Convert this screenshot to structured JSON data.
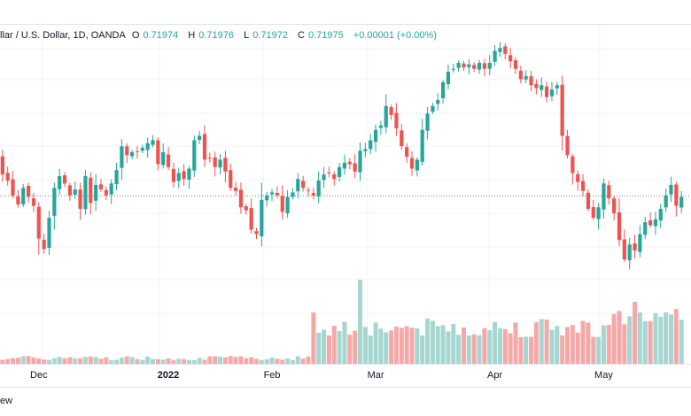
{
  "legend": {
    "symbol": "llar / U.S. Dollar, 1D, OANDA",
    "open_label": "O",
    "open": "0.71974",
    "high_label": "H",
    "high": "0.71976",
    "low_label": "L",
    "low": "0.71972",
    "close_label": "C",
    "close": "0.71975",
    "change": "+0.00001 (+0.00%)"
  },
  "footer": {
    "text": "ew"
  },
  "colors": {
    "up": "#26a69a",
    "down": "#ef5350",
    "vol_up": "#a5d6d0",
    "vol_down": "#f4a9a8",
    "grid": "#f0f3fa"
  },
  "chart_data": {
    "type": "candlestick",
    "title": "llar / U.S. Dollar, 1D, OANDA",
    "x_ticks": [
      {
        "label": "Dec",
        "index": 8
      },
      {
        "label": "2022",
        "index": 33,
        "bold": true
      },
      {
        "label": "Feb",
        "index": 53
      },
      {
        "label": "Mar",
        "index": 73
      },
      {
        "label": "Apr",
        "index": 96
      },
      {
        "label": "May",
        "index": 117
      }
    ],
    "current_price": 0.71975,
    "ylim": [
      0.6985,
      0.7395
    ],
    "close": [
      0.7252,
      0.7226,
      0.7218,
      0.7198,
      0.7186,
      0.7208,
      0.7196,
      0.7184,
      0.714,
      0.7126,
      0.7168,
      0.7208,
      0.7224,
      0.7214,
      0.7198,
      0.7206,
      0.718,
      0.7224,
      0.7188,
      0.7212,
      0.7206,
      0.7198,
      0.7214,
      0.7232,
      0.7264,
      0.7252,
      0.7256,
      0.7256,
      0.7262,
      0.7268,
      0.7272,
      0.724,
      0.7256,
      0.7236,
      0.7216,
      0.7228,
      0.722,
      0.7234,
      0.7272,
      0.7278,
      0.7246,
      0.7248,
      0.7236,
      0.7246,
      0.723,
      0.7208,
      0.7204,
      0.7182,
      0.7178,
      0.7152,
      0.7146,
      0.7192,
      0.7198,
      0.7202,
      0.7198,
      0.7176,
      0.7196,
      0.7202,
      0.722,
      0.7208,
      0.7204,
      0.7198,
      0.7218,
      0.7226,
      0.7228,
      0.722,
      0.7236,
      0.7242,
      0.724,
      0.723,
      0.7258,
      0.726,
      0.7272,
      0.7286,
      0.7292,
      0.7318,
      0.7306,
      0.7288,
      0.7264,
      0.725,
      0.7234,
      0.7246,
      0.7286,
      0.7308,
      0.7318,
      0.7326,
      0.735,
      0.7364,
      0.7368,
      0.7376,
      0.737,
      0.7374,
      0.7368,
      0.7376,
      0.7368,
      0.7376,
      0.7392,
      0.7396,
      0.7388,
      0.7378,
      0.7368,
      0.7354,
      0.7358,
      0.7346,
      0.7342,
      0.7346,
      0.733,
      0.734,
      0.7346,
      0.7278,
      0.7252,
      0.7228,
      0.7216,
      0.7204,
      0.718,
      0.7168,
      0.7182,
      0.7214,
      0.7194,
      0.7174,
      0.7138,
      0.7112,
      0.7132,
      0.7124,
      0.7146,
      0.7162,
      0.7158,
      0.7166,
      0.718,
      0.7198,
      0.7212,
      0.7184,
      0.7196
    ],
    "candle_x_start": -3,
    "candle_spacing": 5.85
  }
}
